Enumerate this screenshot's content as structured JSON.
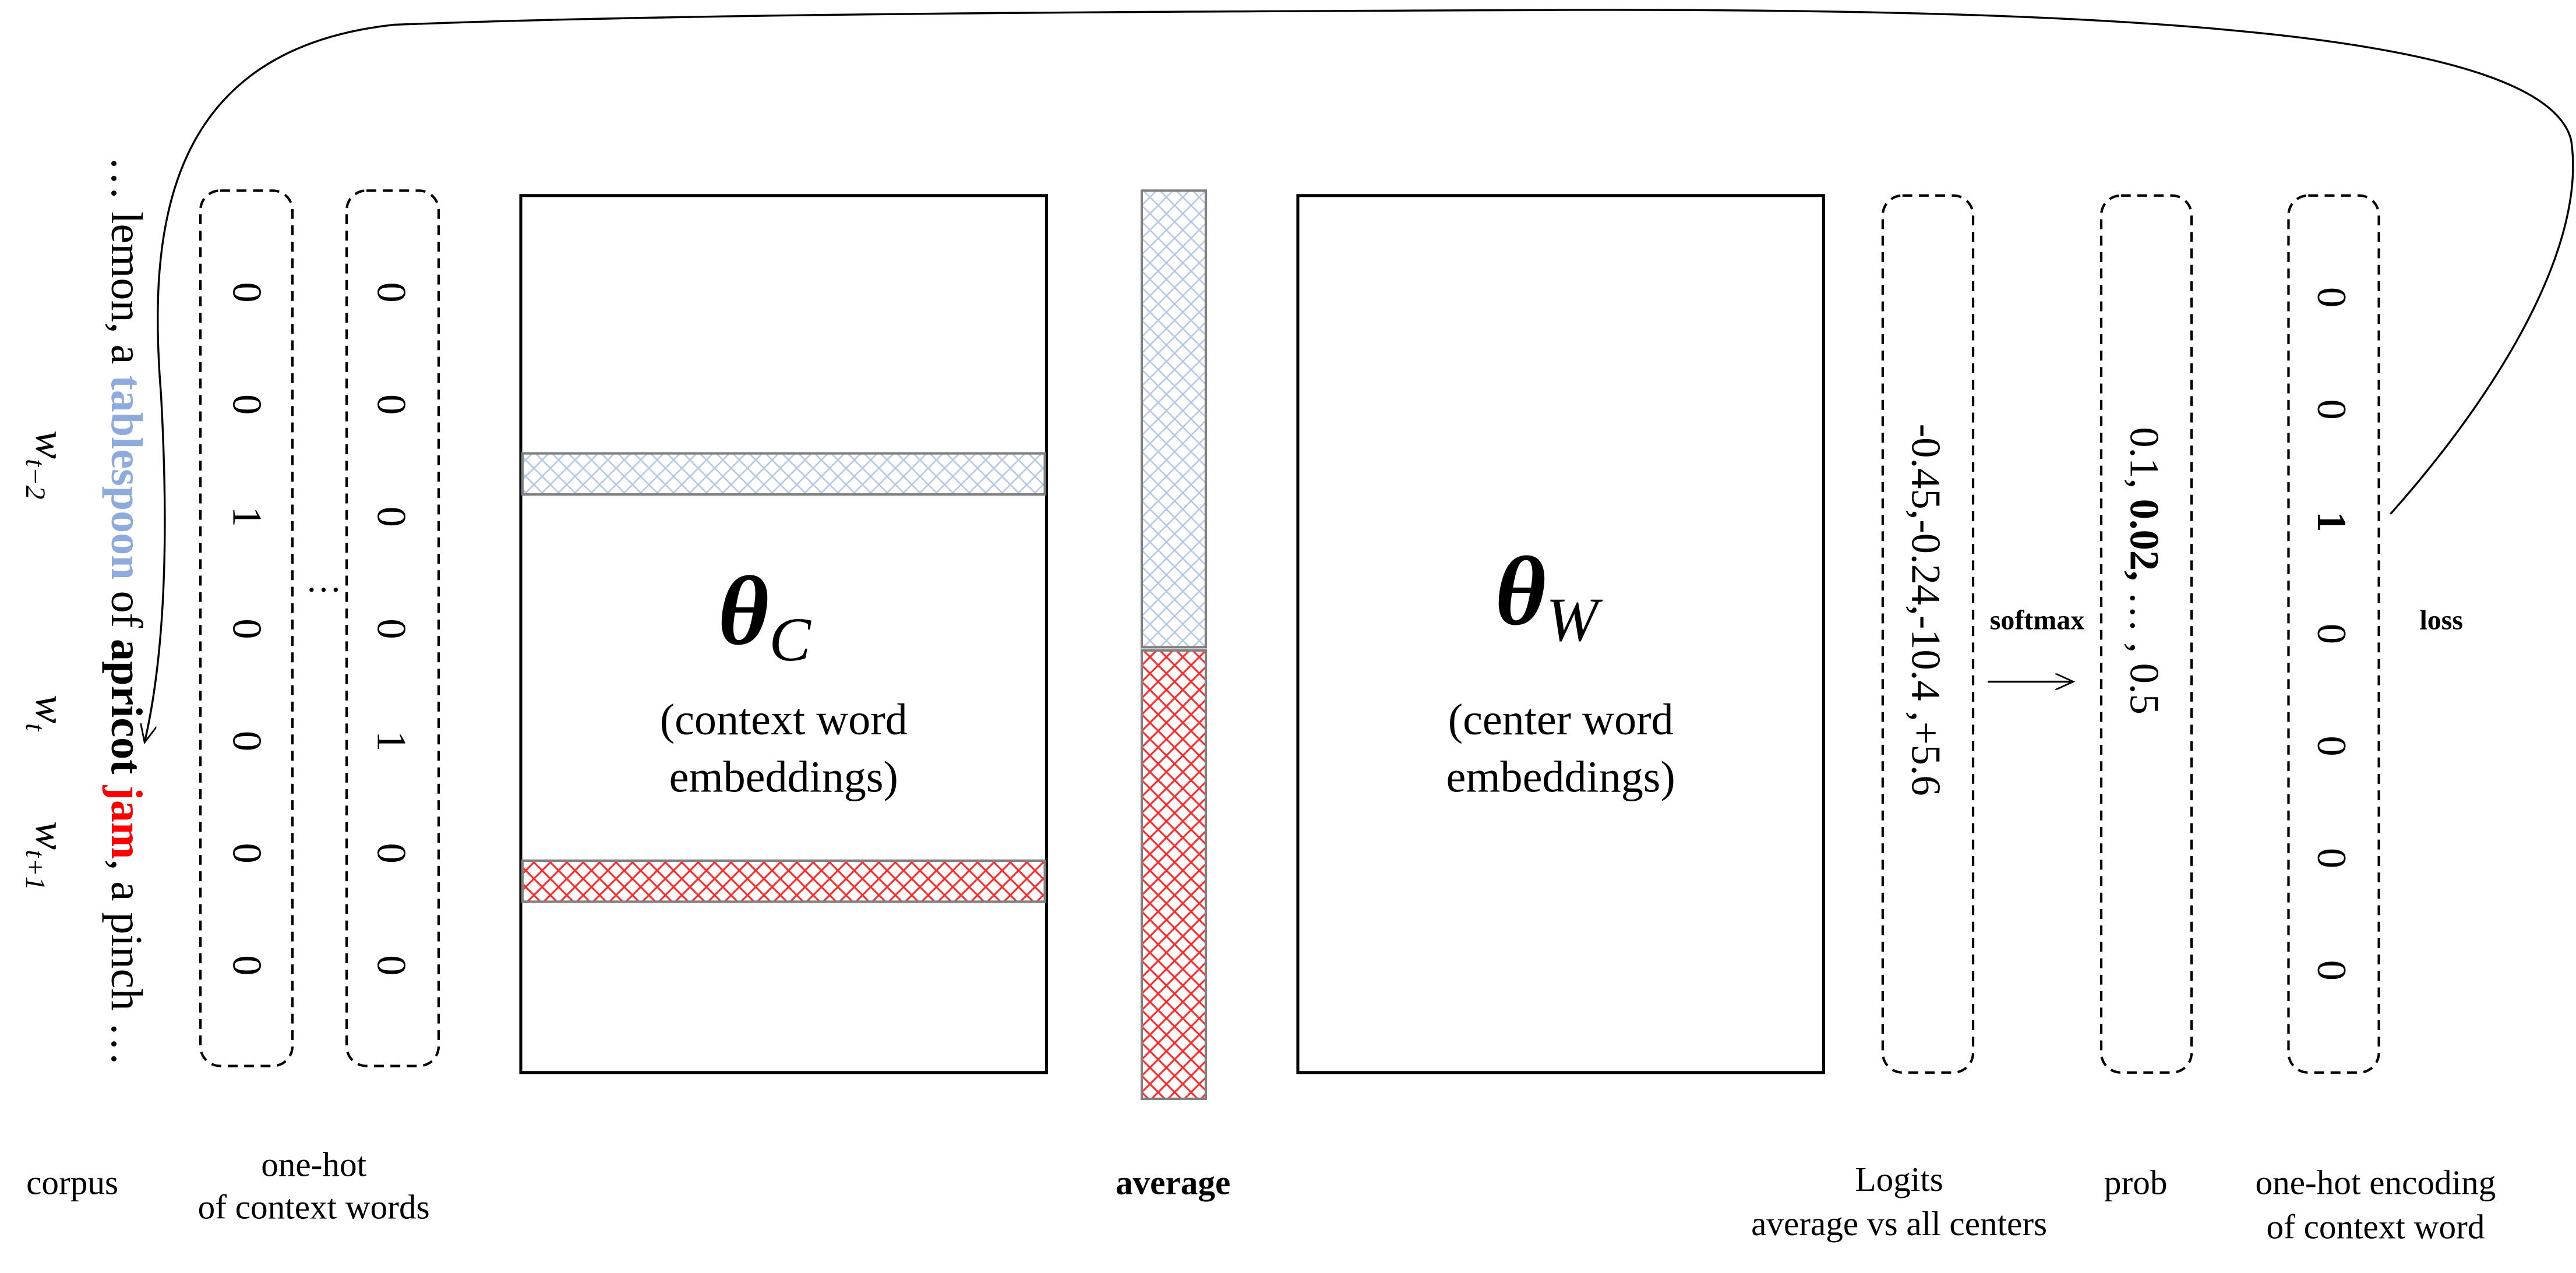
{
  "corpus": {
    "segments": [
      {
        "text": "… lemon, a ",
        "style": "normal"
      },
      {
        "text": "tablespoon",
        "style": "context"
      },
      {
        "text": " of ",
        "style": "normal"
      },
      {
        "text": "apricot",
        "style": "bold"
      },
      {
        "text": " ",
        "style": "normal"
      },
      {
        "text": "jam",
        "style": "target"
      },
      {
        "text": ", a pinch …",
        "style": "normal"
      }
    ],
    "tokens": {
      "w_t_minus_2": {
        "base": "w",
        "sub": "t−2"
      },
      "w_t": {
        "base": "w",
        "sub": "t"
      },
      "w_t_plus_1": {
        "base": "w",
        "sub": "t+1"
      }
    },
    "label": "corpus"
  },
  "one_hot_context": {
    "vector_1": [
      "0",
      "0",
      "1",
      "0",
      "0",
      "0",
      "0"
    ],
    "vector_2": [
      "0",
      "0",
      "0",
      "0",
      "1",
      "0",
      "0"
    ],
    "ellipsis": "…",
    "label_line1": "one-hot",
    "label_line2": "of context words"
  },
  "theta_c": {
    "symbol": "θ",
    "subscript": "C",
    "caption_line1": "(context word",
    "caption_line2": "embeddings)"
  },
  "average": {
    "label": "average"
  },
  "theta_w": {
    "symbol": "θ",
    "subscript": "W",
    "caption_line1": "(center word",
    "caption_line2": "embeddings)"
  },
  "logits": {
    "values": "-0.45,-0.24,-10.4 ,+5.6",
    "label_line1": "Logits",
    "label_line2": "average vs all centers"
  },
  "softmax": {
    "label": "softmax"
  },
  "prob": {
    "values": [
      {
        "text": "0.1, ",
        "bold": false
      },
      {
        "text": "0.02,",
        "bold": true
      },
      {
        "text": " … ,  0.5",
        "bold": false
      }
    ],
    "label": "prob"
  },
  "one_hot_target": {
    "vector": [
      "0",
      "0",
      "1",
      "0",
      "0",
      "0",
      "0"
    ],
    "bold_index": 2,
    "label_line1": "one-hot encoding",
    "label_line2": "of context word"
  },
  "loss": {
    "label": "loss"
  },
  "colors": {
    "context": "#8faadc",
    "target": "#ff0000",
    "text": "#000000",
    "border": "#808080"
  }
}
